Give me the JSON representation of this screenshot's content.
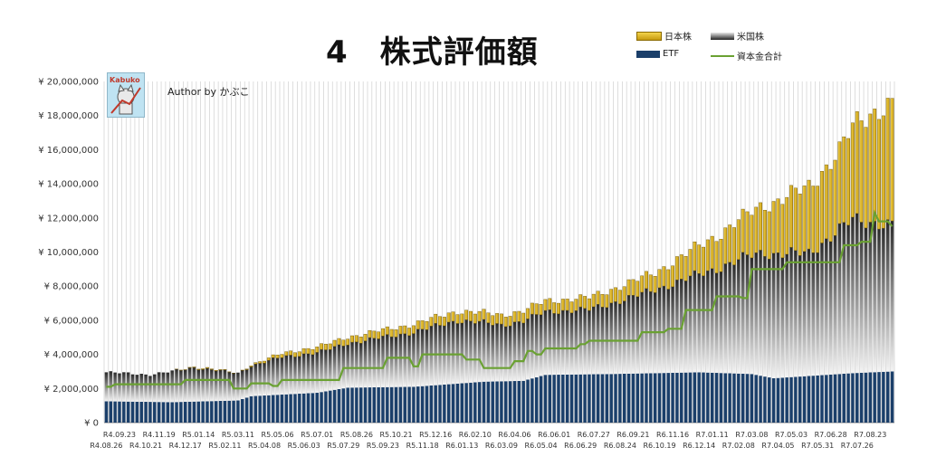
{
  "chart_data": {
    "type": "bar",
    "title": "4　株式評価額",
    "stacked": true,
    "ylim": [
      0,
      20000000
    ],
    "ytick_labels": [
      "¥ 0",
      "¥ 2,000,000",
      "¥ 4,000,000",
      "¥ 6,000,000",
      "¥ 8,000,000",
      "¥ 10,000,000",
      "¥ 12,000,000",
      "¥ 14,000,000",
      "¥ 16,000,000",
      "¥ 18,000,000",
      "¥ 20,000,000"
    ],
    "xtick_labels_upper": [
      "R4.09.23",
      "R4.11.19",
      "R5.01.14",
      "R5.03.11",
      "R5.05.06",
      "R5.07.01",
      "R5.08.26",
      "R5.10.21",
      "R5.12.16",
      "R6.02.10",
      "R6.04.06",
      "R6.06.01",
      "R6.07.27",
      "R6.09.21",
      "R6.11.16",
      "R7.01.11",
      "R7.03.08",
      "R7.05.03",
      "R7.06.28",
      "R7.08.23"
    ],
    "xtick_labels_lower": [
      "R4.08.26",
      "R4.10.21",
      "R4.12.17",
      "R5.02.11",
      "R5.04.08",
      "R5.06.03",
      "R5.07.29",
      "R5.09.23",
      "R5.11.18",
      "R6.01.13",
      "R6.03.09",
      "R6.05.04",
      "R6.06.29",
      "R6.08.24",
      "R6.10.19",
      "R6.12.14",
      "R7.02.08",
      "R7.04.05",
      "R7.05.31",
      "R7.07.26"
    ],
    "legend_position": "top-right",
    "grid": true,
    "colors": {
      "nihon": "#e6b81e",
      "beikoku": "#555555",
      "etf": "#1b3f6a",
      "capital": "#6aa132",
      "grid": "#c8c8c8"
    },
    "series": [
      {
        "name": "日本株",
        "kind": "bar-stack-top",
        "anchors": [
          [
            0,
            0
          ],
          [
            15,
            0
          ],
          [
            23,
            50000
          ],
          [
            30,
            0
          ],
          [
            45,
            300000
          ],
          [
            60,
            400000
          ],
          [
            71,
            480000
          ],
          [
            80,
            550000
          ],
          [
            95,
            600000
          ],
          [
            110,
            700000
          ],
          [
            125,
            1000000
          ],
          [
            140,
            2000000
          ],
          [
            150,
            2800000
          ],
          [
            160,
            3900000
          ],
          [
            167,
            4600000
          ],
          [
            172,
            6000000
          ],
          [
            176,
            6700000
          ],
          [
            179,
            7000000
          ]
        ]
      },
      {
        "name": "米国株",
        "kind": "bar-stack-mid",
        "anchors": [
          [
            0,
            1700000
          ],
          [
            10,
            1600000
          ],
          [
            20,
            2000000
          ],
          [
            30,
            1600000
          ],
          [
            40,
            2200000
          ],
          [
            50,
            2400000
          ],
          [
            60,
            2800000
          ],
          [
            70,
            3200000
          ],
          [
            80,
            3700000
          ],
          [
            90,
            3300000
          ],
          [
            100,
            3700000
          ],
          [
            110,
            3800000
          ],
          [
            120,
            4500000
          ],
          [
            130,
            5300000
          ],
          [
            140,
            6200000
          ],
          [
            150,
            7300000
          ],
          [
            160,
            7200000
          ],
          [
            170,
            9000000
          ],
          [
            179,
            8600000
          ]
        ]
      },
      {
        "name": "ETF",
        "kind": "bar-stack-bottom",
        "anchors": [
          [
            0,
            1250000
          ],
          [
            15,
            1200000
          ],
          [
            30,
            1300000
          ],
          [
            33,
            1550000
          ],
          [
            48,
            1750000
          ],
          [
            55,
            2050000
          ],
          [
            70,
            2100000
          ],
          [
            86,
            2400000
          ],
          [
            95,
            2450000
          ],
          [
            100,
            2800000
          ],
          [
            115,
            2850000
          ],
          [
            135,
            2950000
          ],
          [
            147,
            2850000
          ],
          [
            152,
            2600000
          ],
          [
            158,
            2700000
          ],
          [
            170,
            2900000
          ],
          [
            179,
            3000000
          ]
        ]
      },
      {
        "name": "資本金合計",
        "kind": "line",
        "steps": [
          [
            0,
            2100000
          ],
          [
            2,
            2250000
          ],
          [
            18,
            2500000
          ],
          [
            29,
            2000000
          ],
          [
            33,
            2300000
          ],
          [
            38,
            2150000
          ],
          [
            40,
            2500000
          ],
          [
            54,
            3200000
          ],
          [
            64,
            3800000
          ],
          [
            70,
            3300000
          ],
          [
            72,
            4000000
          ],
          [
            82,
            3700000
          ],
          [
            86,
            3200000
          ],
          [
            93,
            3600000
          ],
          [
            96,
            4200000
          ],
          [
            98,
            4000000
          ],
          [
            100,
            4350000
          ],
          [
            108,
            4600000
          ],
          [
            110,
            4800000
          ],
          [
            122,
            5300000
          ],
          [
            128,
            5500000
          ],
          [
            132,
            6600000
          ],
          [
            139,
            7400000
          ],
          [
            145,
            7300000
          ],
          [
            147,
            9000000
          ],
          [
            152,
            9000000
          ],
          [
            155,
            9400000
          ],
          [
            168,
            10400000
          ],
          [
            172,
            10600000
          ],
          [
            175,
            12300000
          ],
          [
            176,
            11800000
          ],
          [
            179,
            11500000
          ]
        ]
      }
    ],
    "bar_count": 180
  },
  "legend": {
    "nihon": "日本株",
    "beikoku": "米国株",
    "etf": "ETF",
    "capital": "資本金合計"
  },
  "author": "Author by かぶこ",
  "logo_text": "Kabuko"
}
